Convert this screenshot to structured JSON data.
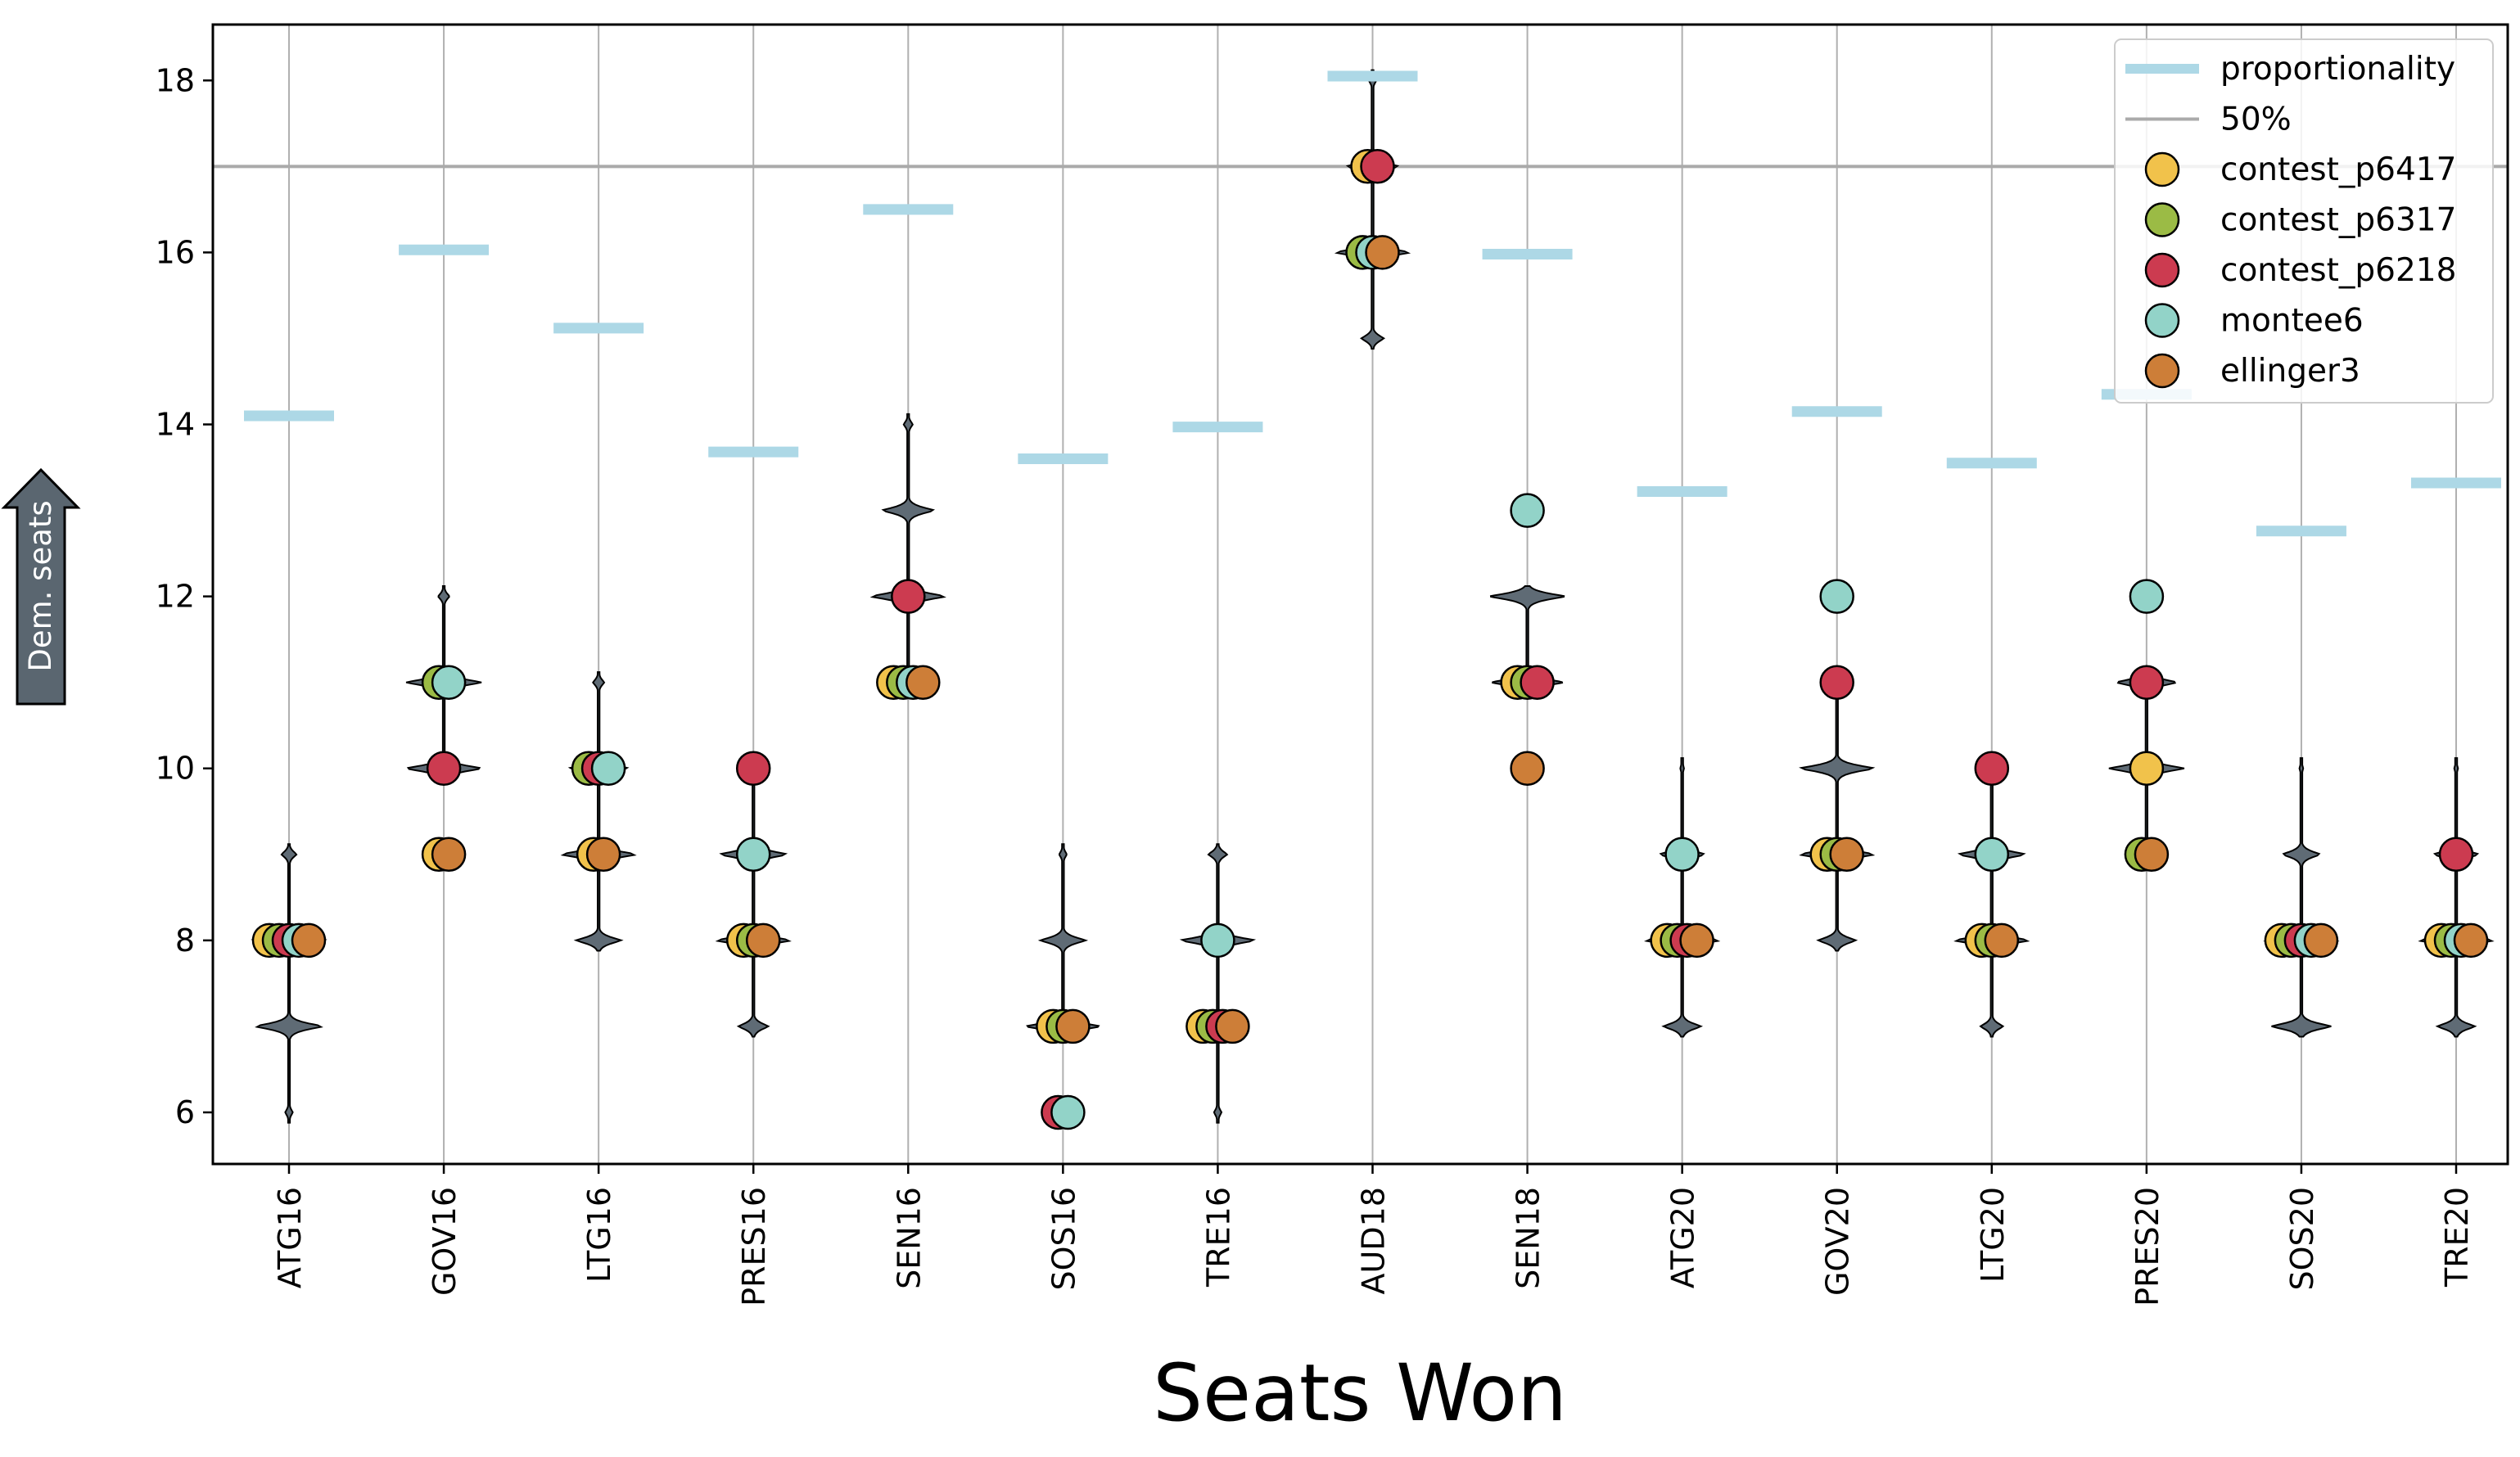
{
  "chart_data": {
    "type": "scatter",
    "xlabel": "Seats Won",
    "ylabel_arrow": "Dem. seats",
    "ylim": [
      5.4,
      18.65
    ],
    "yticks": [
      6,
      8,
      10,
      12,
      14,
      16,
      18
    ],
    "grid": "vertical",
    "legend_position": "top-right",
    "categories": [
      "ATG16",
      "GOV16",
      "LTG16",
      "PRES16",
      "SEN16",
      "SOS16",
      "TRE16",
      "AUD18",
      "SEN18",
      "ATG20",
      "GOV20",
      "LTG20",
      "PRES20",
      "SOS20",
      "TRE20"
    ],
    "proportionality": {
      "name": "proportionality",
      "color": "#add8e6",
      "values": [
        14.1,
        16.03,
        15.12,
        13.68,
        16.5,
        13.6,
        13.97,
        18.05,
        15.98,
        13.22,
        14.15,
        13.55,
        14.35,
        12.76,
        13.32
      ]
    },
    "fifty_percent": {
      "name": "50%",
      "value": 17.0,
      "color": "#aaaaaa"
    },
    "ensemble_distributions": [
      {
        "6": 0.1,
        "7": 0.9,
        "8": 1.0,
        "9": 0.2
      },
      {
        "10": 1.0,
        "11": 1.0,
        "12": 0.15
      },
      {
        "8": 0.6,
        "9": 1.0,
        "10": 0.8,
        "11": 0.15
      },
      {
        "7": 0.4,
        "8": 1.0,
        "9": 0.9,
        "10": 0.2
      },
      {
        "11": 0.7,
        "12": 1.0,
        "13": 0.7,
        "14": 0.12
      },
      {
        "7": 1.0,
        "8": 0.6,
        "9": 0.1
      },
      {
        "6": 0.1,
        "7": 0.7,
        "8": 1.0,
        "9": 0.25
      },
      {
        "15": 0.3,
        "16": 1.0,
        "17": 0.7,
        "18": 0.1
      },
      {
        "11": 0.95,
        "12": 1.0
      },
      {
        "7": 0.5,
        "8": 1.0,
        "9": 0.6,
        "10": 0.05
      },
      {
        "8": 0.5,
        "9": 1.0,
        "10": 1.0,
        "11": 0.15
      },
      {
        "7": 0.3,
        "8": 1.0,
        "9": 0.9,
        "10": 0.05
      },
      {
        "9": 0.3,
        "10": 1.0,
        "11": 0.8
      },
      {
        "7": 0.8,
        "8": 1.0,
        "9": 0.5,
        "10": 0.05
      },
      {
        "7": 0.5,
        "8": 1.0,
        "9": 0.6,
        "10": 0.05
      }
    ],
    "series": [
      {
        "name": "contest_p6417",
        "color": "#f1c24b",
        "values": [
          8,
          9,
          9,
          8,
          11,
          7,
          7,
          17,
          11,
          8,
          9,
          8,
          10,
          8,
          8
        ]
      },
      {
        "name": "contest_p6317",
        "color": "#9bbb45",
        "values": [
          8,
          11,
          10,
          8,
          11,
          7,
          7,
          16,
          11,
          8,
          9,
          8,
          9,
          8,
          8
        ]
      },
      {
        "name": "contest_p6218",
        "color": "#cc3b50",
        "values": [
          8,
          10,
          10,
          10,
          12,
          6,
          7,
          17,
          11,
          8,
          11,
          10,
          11,
          8,
          9
        ]
      },
      {
        "name": "montee6",
        "color": "#92d3c8",
        "values": [
          8,
          11,
          10,
          9,
          11,
          6,
          8,
          16,
          13,
          9,
          12,
          9,
          12,
          8,
          8
        ]
      },
      {
        "name": "ellinger3",
        "color": "#cd7e38",
        "values": [
          8,
          9,
          9,
          8,
          11,
          7,
          7,
          16,
          10,
          8,
          9,
          8,
          9,
          8,
          8
        ]
      }
    ],
    "legend": [
      "proportionality",
      "50%",
      "contest_p6417",
      "contest_p6317",
      "contest_p6218",
      "montee6",
      "ellinger3"
    ]
  }
}
